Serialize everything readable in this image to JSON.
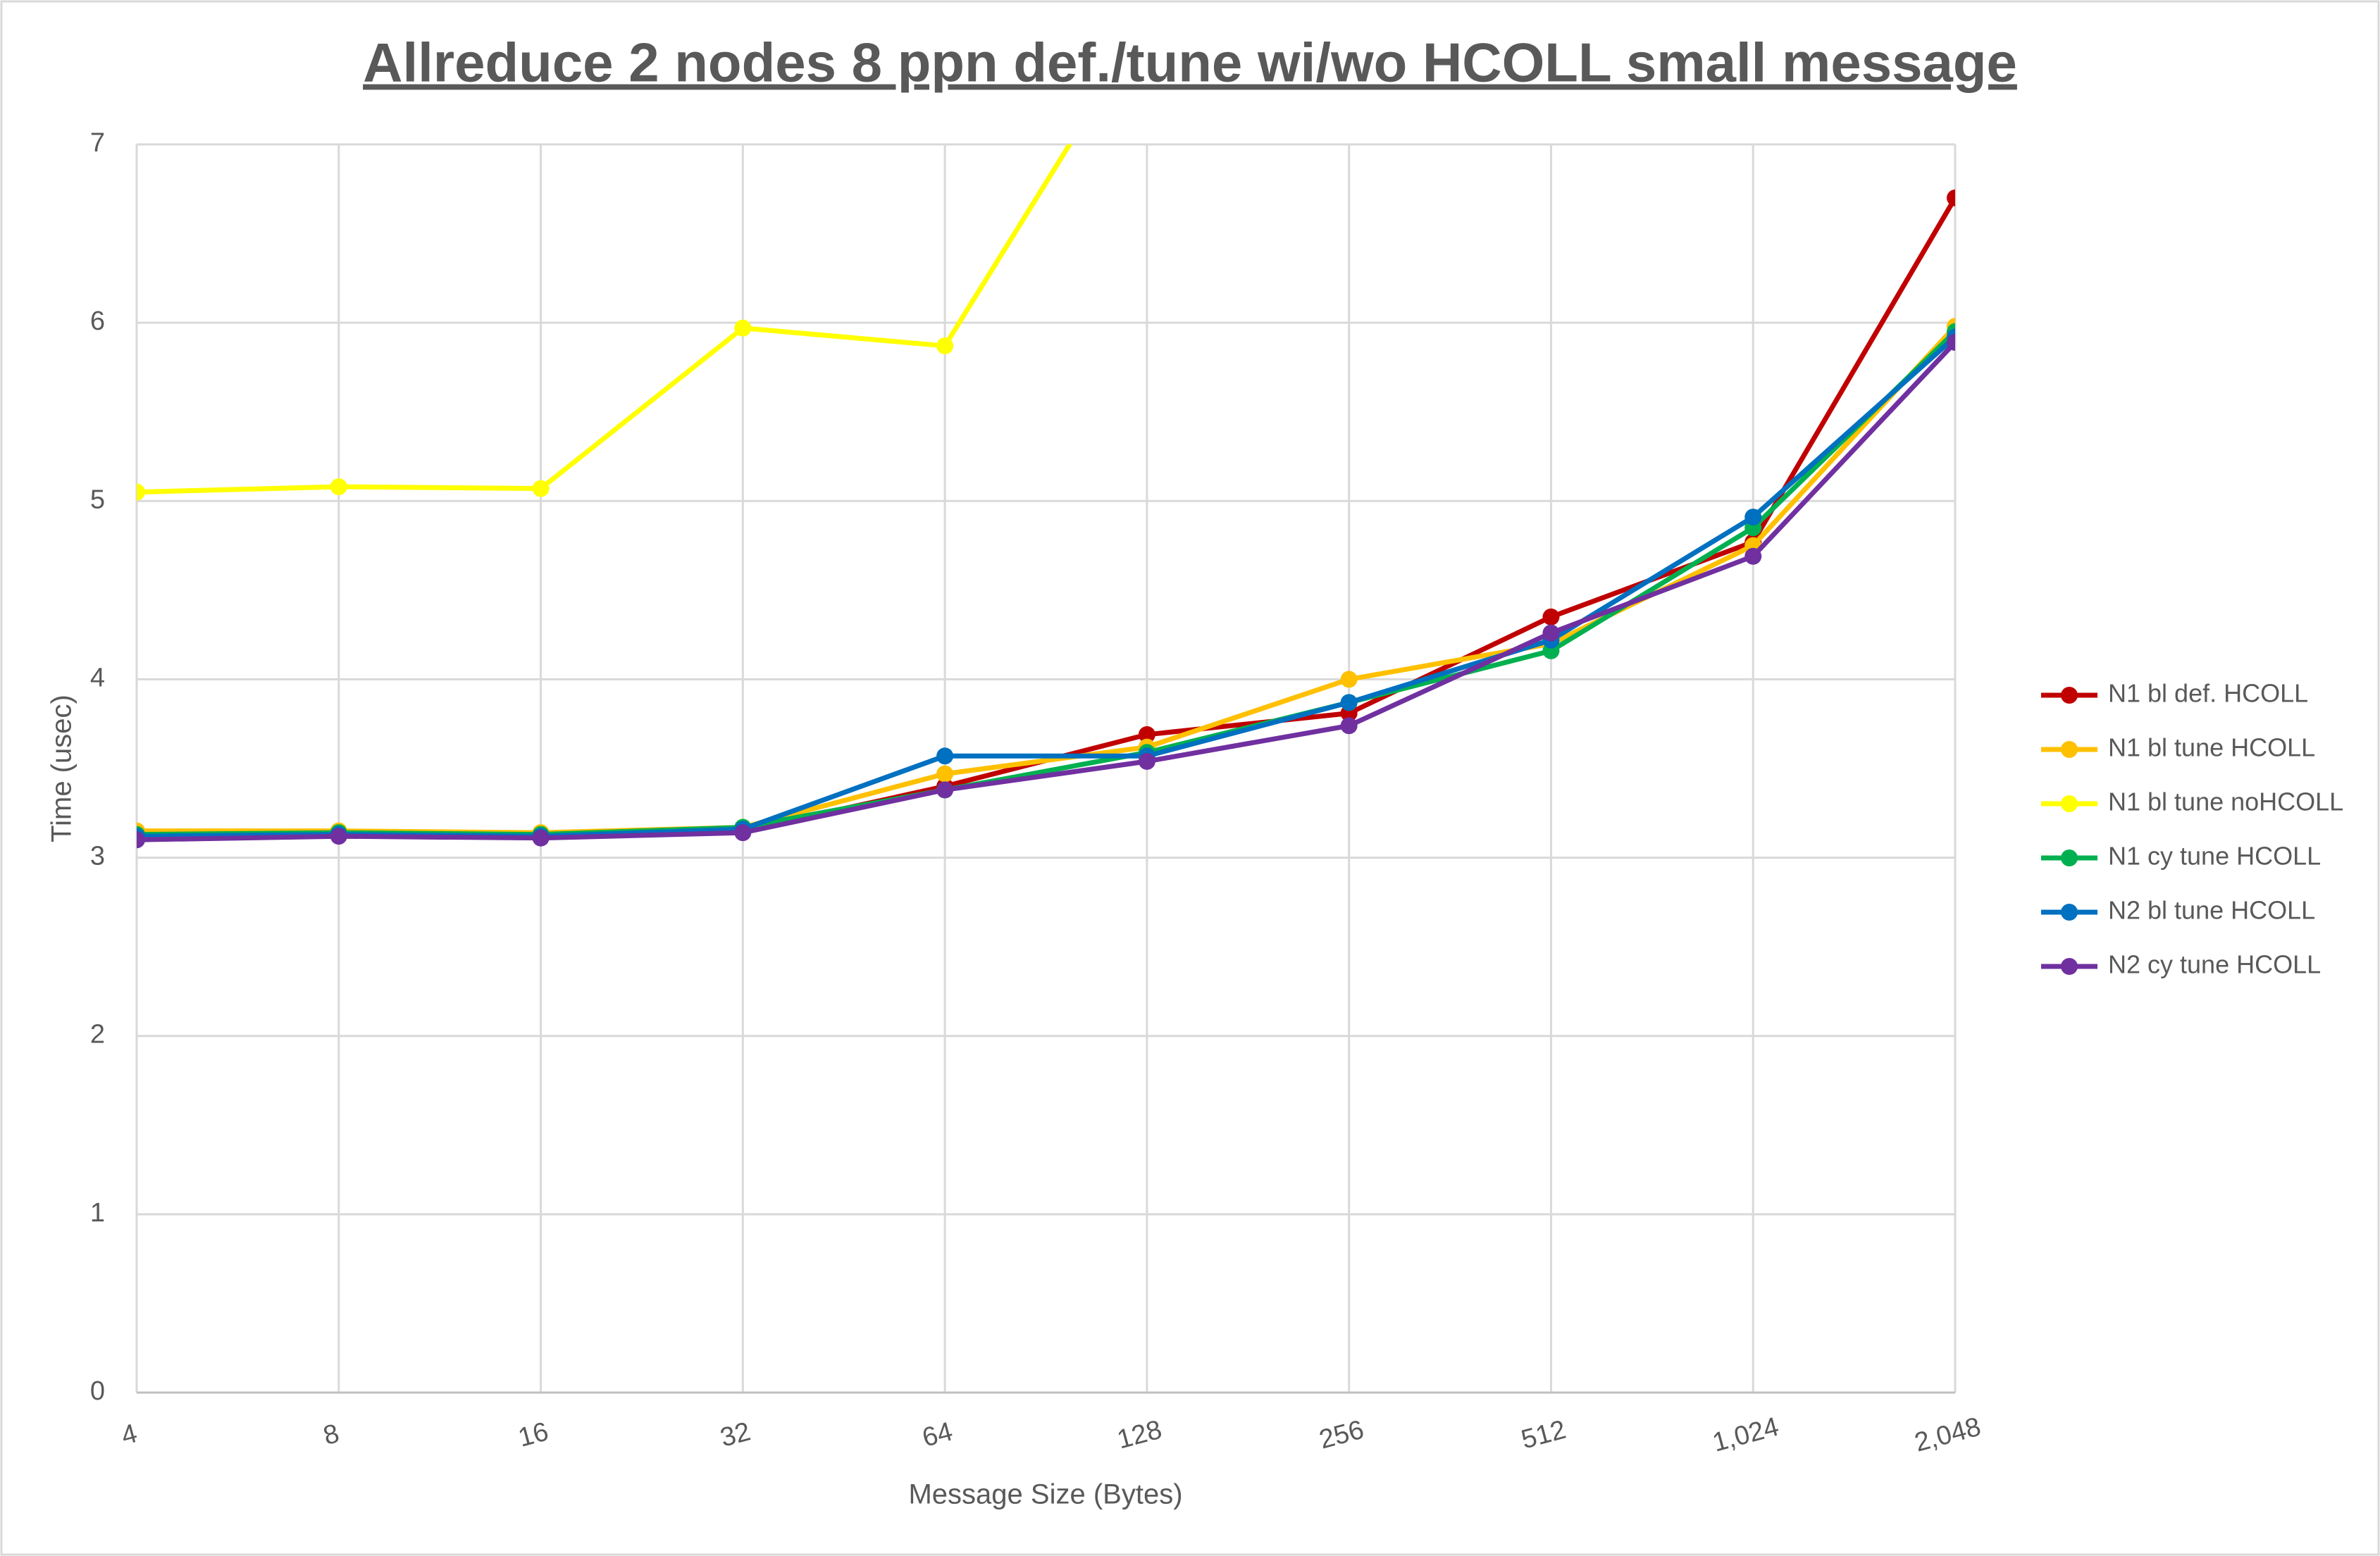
{
  "chart_data": {
    "type": "line",
    "title": "Allreduce 2 nodes 8 ppn def./tune wi/wo HCOLL small message",
    "x_label": "Message Size (Bytes)",
    "y_label": "Time (usec)",
    "categories": [
      "4",
      "8",
      "16",
      "32",
      "64",
      "128",
      "256",
      "512",
      "1,024",
      "2,048"
    ],
    "ylim": [
      0,
      7
    ],
    "yticks": [
      0,
      1,
      2,
      3,
      4,
      5,
      6,
      7
    ],
    "grid": true,
    "legend": "right",
    "series": [
      {
        "name": "N1 bl def. HCOLL",
        "color": "#c00000",
        "values": [
          3.12,
          3.13,
          3.12,
          3.15,
          3.4,
          3.69,
          3.81,
          4.35,
          4.77,
          6.7
        ]
      },
      {
        "name": "N1 bl tune HCOLL",
        "color": "#ffc000",
        "values": [
          3.15,
          3.15,
          3.14,
          3.17,
          3.47,
          3.62,
          4.0,
          4.2,
          4.75,
          5.98
        ]
      },
      {
        "name": "N1 bl tune noHCOLL",
        "color": "#ffff00",
        "values": [
          5.05,
          5.08,
          5.07,
          5.97,
          5.87,
          7.7,
          null,
          null,
          null,
          null
        ]
      },
      {
        "name": "N1 cy tune HCOLL",
        "color": "#00b050",
        "values": [
          3.13,
          3.14,
          3.13,
          3.17,
          3.38,
          3.59,
          3.87,
          4.16,
          4.85,
          5.95
        ]
      },
      {
        "name": "N2 bl tune HCOLL",
        "color": "#0070c0",
        "values": [
          3.12,
          3.13,
          3.12,
          3.16,
          3.57,
          3.57,
          3.87,
          4.22,
          4.91,
          5.92
        ]
      },
      {
        "name": "N2 cy tune HCOLL",
        "color": "#7030a0",
        "values": [
          3.1,
          3.12,
          3.11,
          3.14,
          3.38,
          3.54,
          3.74,
          4.26,
          4.69,
          5.89
        ]
      }
    ]
  }
}
